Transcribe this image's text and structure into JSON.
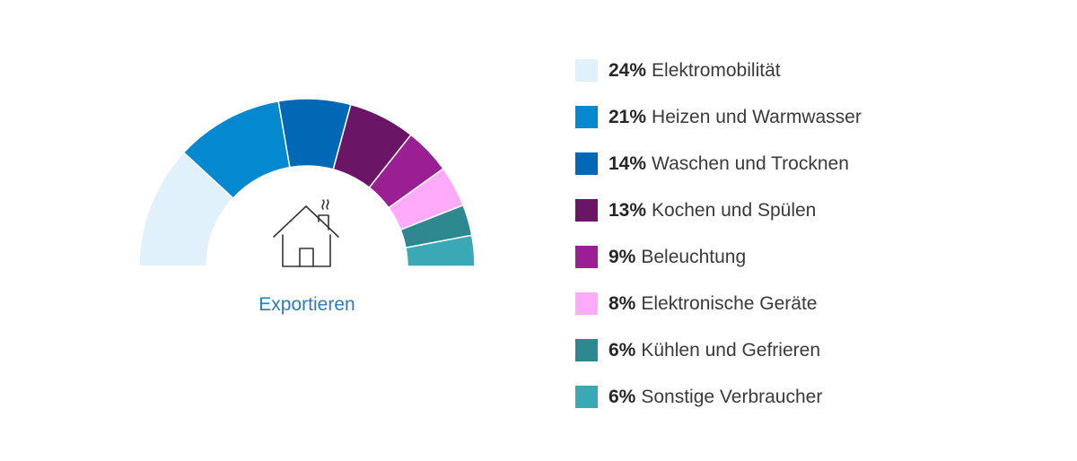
{
  "chart_data": {
    "type": "pie",
    "variant": "half-donut",
    "slices": [
      {
        "label": "Elektromobilität",
        "value": 24,
        "display": "24%",
        "color": "#e1f1fc"
      },
      {
        "label": "Heizen und Warmwasser",
        "value": 21,
        "display": "21%",
        "color": "#0488d0"
      },
      {
        "label": "Waschen und Trocknen",
        "value": 14,
        "display": "14%",
        "color": "#0068b5"
      },
      {
        "label": "Kochen und Spülen",
        "value": 13,
        "display": "13%",
        "color": "#6a1565"
      },
      {
        "label": "Beleuchtung",
        "value": 9,
        "display": "9%",
        "color": "#9a1f93"
      },
      {
        "label": "Elektronische Geräte",
        "value": 8,
        "display": "8%",
        "color": "#ffaafa"
      },
      {
        "label": "Kühlen und Gefrieren",
        "value": 6,
        "display": "6%",
        "color": "#2e8890"
      },
      {
        "label": "Sonstige Verbraucher",
        "value": 6,
        "display": "6%",
        "color": "#3ba9b5"
      }
    ],
    "legend_position": "right",
    "center_icon": "house-icon"
  },
  "export_label": "Exportieren",
  "colors": {
    "link": "#2f7ab8",
    "icon_stroke": "#333333"
  }
}
